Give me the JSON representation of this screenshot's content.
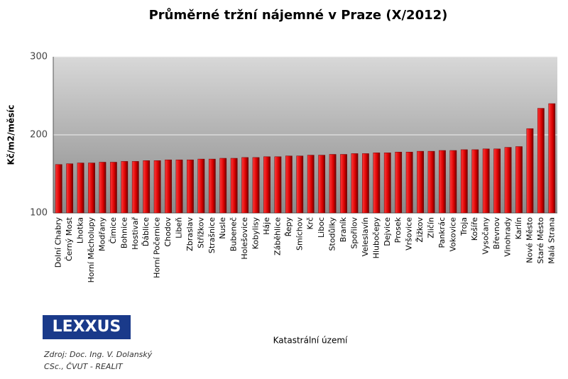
{
  "chart_data": {
    "type": "bar",
    "title": "Průměrné tržní nájemné v Praze (X/2012)",
    "y_label": "Kč/m2/měsíc",
    "x_label": "Katastrální území",
    "categories": [
      "Dolní Chabry",
      "Černý Most",
      "Lhotka",
      "Horní Měcholupy",
      "Modřany",
      "Čimice",
      "Bohnice",
      "Hostivař",
      "Ďáblice",
      "Horní Počernice",
      "Chodov",
      "Libeň",
      "Zbraslav",
      "Střížkov",
      "Strašnice",
      "Nusle",
      "Bubeneč",
      "Holešovice",
      "Kobylisy",
      "Háje",
      "Záběhlice",
      "Řepy",
      "Smíchov",
      "Krč",
      "Liboc",
      "Stodůlky",
      "Braník",
      "Spořilov",
      "Veleslavín",
      "Hlubočepy",
      "Dejvice",
      "Prosek",
      "Vršovice",
      "Žižkov",
      "Zličín",
      "Pankrác",
      "Vokovice",
      "Troja",
      "Košíře",
      "Vysočany",
      "Břevnov",
      "Vinohrady",
      "Karlín",
      "Nové Město",
      "Staré Město",
      "Malá Strana"
    ],
    "values": [
      162,
      163,
      164,
      164,
      165,
      165,
      166,
      166,
      167,
      167,
      168,
      168,
      168,
      169,
      169,
      170,
      170,
      171,
      171,
      172,
      172,
      173,
      173,
      174,
      174,
      175,
      175,
      176,
      176,
      177,
      177,
      178,
      178,
      179,
      179,
      180,
      180,
      181,
      181,
      182,
      182,
      184,
      185,
      208,
      234,
      240
    ],
    "color": "#e00000",
    "ylim": [
      100,
      300
    ],
    "yticks": [
      100,
      200,
      300
    ],
    "grid": true
  },
  "logo": "LEXXUS",
  "source": [
    "Zdroj:  Doc. Ing. V. Dolanský",
    "CSc., ČVUT - REALIT"
  ]
}
